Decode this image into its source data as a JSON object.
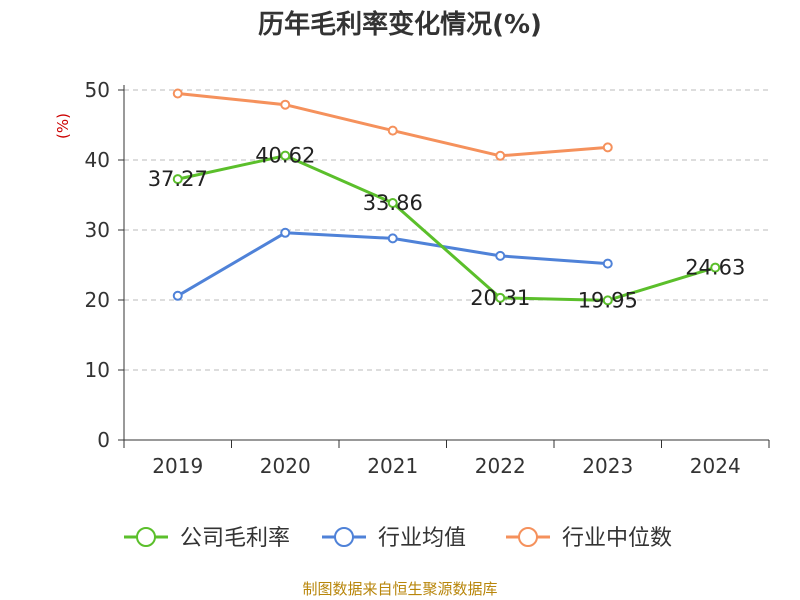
{
  "chart_data": {
    "type": "line",
    "title": "历年毛利率变化情况(%)",
    "ylabel": "(%)",
    "xlabel": "",
    "categories": [
      "2019",
      "2020",
      "2021",
      "2022",
      "2023",
      "2024"
    ],
    "ylim": [
      0,
      50
    ],
    "yticks": [
      0,
      10,
      20,
      30,
      40,
      50
    ],
    "grid": true,
    "legend_position": "bottom",
    "series": [
      {
        "name": "公司毛利率",
        "color": "#5bbf2b",
        "values": [
          37.27,
          40.62,
          33.86,
          20.31,
          19.95,
          24.63
        ],
        "labels": [
          "37.27",
          "40.62",
          "33.86",
          "20.31",
          "19.95",
          "24.63"
        ]
      },
      {
        "name": "行业均值",
        "color": "#4f82d8",
        "values": [
          20.6,
          29.6,
          28.8,
          26.3,
          25.2,
          null
        ]
      },
      {
        "name": "行业中位数",
        "color": "#f5915c",
        "values": [
          49.5,
          47.9,
          44.2,
          40.6,
          41.8,
          null
        ]
      }
    ],
    "source": "制图数据来自恒生聚源数据库"
  }
}
